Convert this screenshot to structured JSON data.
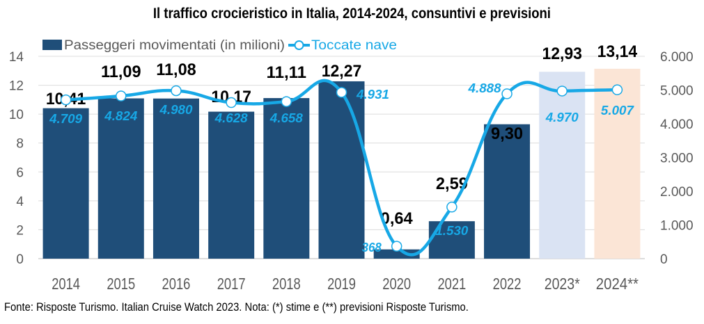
{
  "chart_data": {
    "type": "bar",
    "title": "Il traffico crocieristico in Italia, 2014-2024, consuntivi e previsioni",
    "categories": [
      "2014",
      "2015",
      "2016",
      "2017",
      "2018",
      "2019",
      "2020",
      "2021",
      "2022",
      "2023*",
      "2024**"
    ],
    "series": [
      {
        "name": "Passeggeri movimentati (in milioni)",
        "type": "bar",
        "axis": "left",
        "values": [
          10.41,
          11.09,
          11.08,
          10.17,
          11.11,
          12.27,
          0.64,
          2.59,
          9.3,
          12.93,
          13.14
        ],
        "labels": [
          "10,41",
          "11,09",
          "11,08",
          "10,17",
          "11,11",
          "12,27",
          "0,64",
          "2,59",
          "9,30",
          "12,93",
          "13,14"
        ],
        "color": "#1f4e79",
        "point_colors": [
          "#1f4e79",
          "#1f4e79",
          "#1f4e79",
          "#1f4e79",
          "#1f4e79",
          "#1f4e79",
          "#1f4e79",
          "#1f4e79",
          "#1f4e79",
          "#dae3f3",
          "#fbe5d6"
        ]
      },
      {
        "name": "Toccate nave",
        "type": "line",
        "axis": "right",
        "smooth": true,
        "values": [
          4709,
          4824,
          4980,
          4628,
          4658,
          4931,
          368,
          1530,
          4888,
          4970,
          5007
        ],
        "labels": [
          "4.709",
          "4.824",
          "4.980",
          "4.628",
          "4.658",
          "4.931",
          "368",
          "1.530",
          "4.888",
          "4.970",
          "5.007"
        ],
        "color": "#17a8e6"
      }
    ],
    "y_left": {
      "ylim": [
        0,
        14
      ],
      "ticks": [
        0,
        2,
        4,
        6,
        8,
        10,
        12,
        14
      ],
      "tick_labels": [
        "0",
        "2",
        "4",
        "6",
        "8",
        "10",
        "12",
        "14"
      ]
    },
    "y_right": {
      "ylim": [
        0,
        6000
      ],
      "ticks": [
        0,
        1000,
        2000,
        3000,
        4000,
        5000,
        6000
      ],
      "tick_labels": [
        "0",
        "1.000",
        "2.000",
        "3.000",
        "4.000",
        "5.000",
        "6.000"
      ]
    },
    "xlabel": "",
    "ylabel": "",
    "grid": true,
    "legend": {
      "position": "top-left",
      "entries": [
        "Passeggeri movimentati (in milioni)",
        "Toccate nave"
      ]
    }
  },
  "footer": "Fonte: Risposte Turismo. Italian Cruise Watch 2023. Nota: (*) stime e (**) previsioni Risposte Turismo."
}
